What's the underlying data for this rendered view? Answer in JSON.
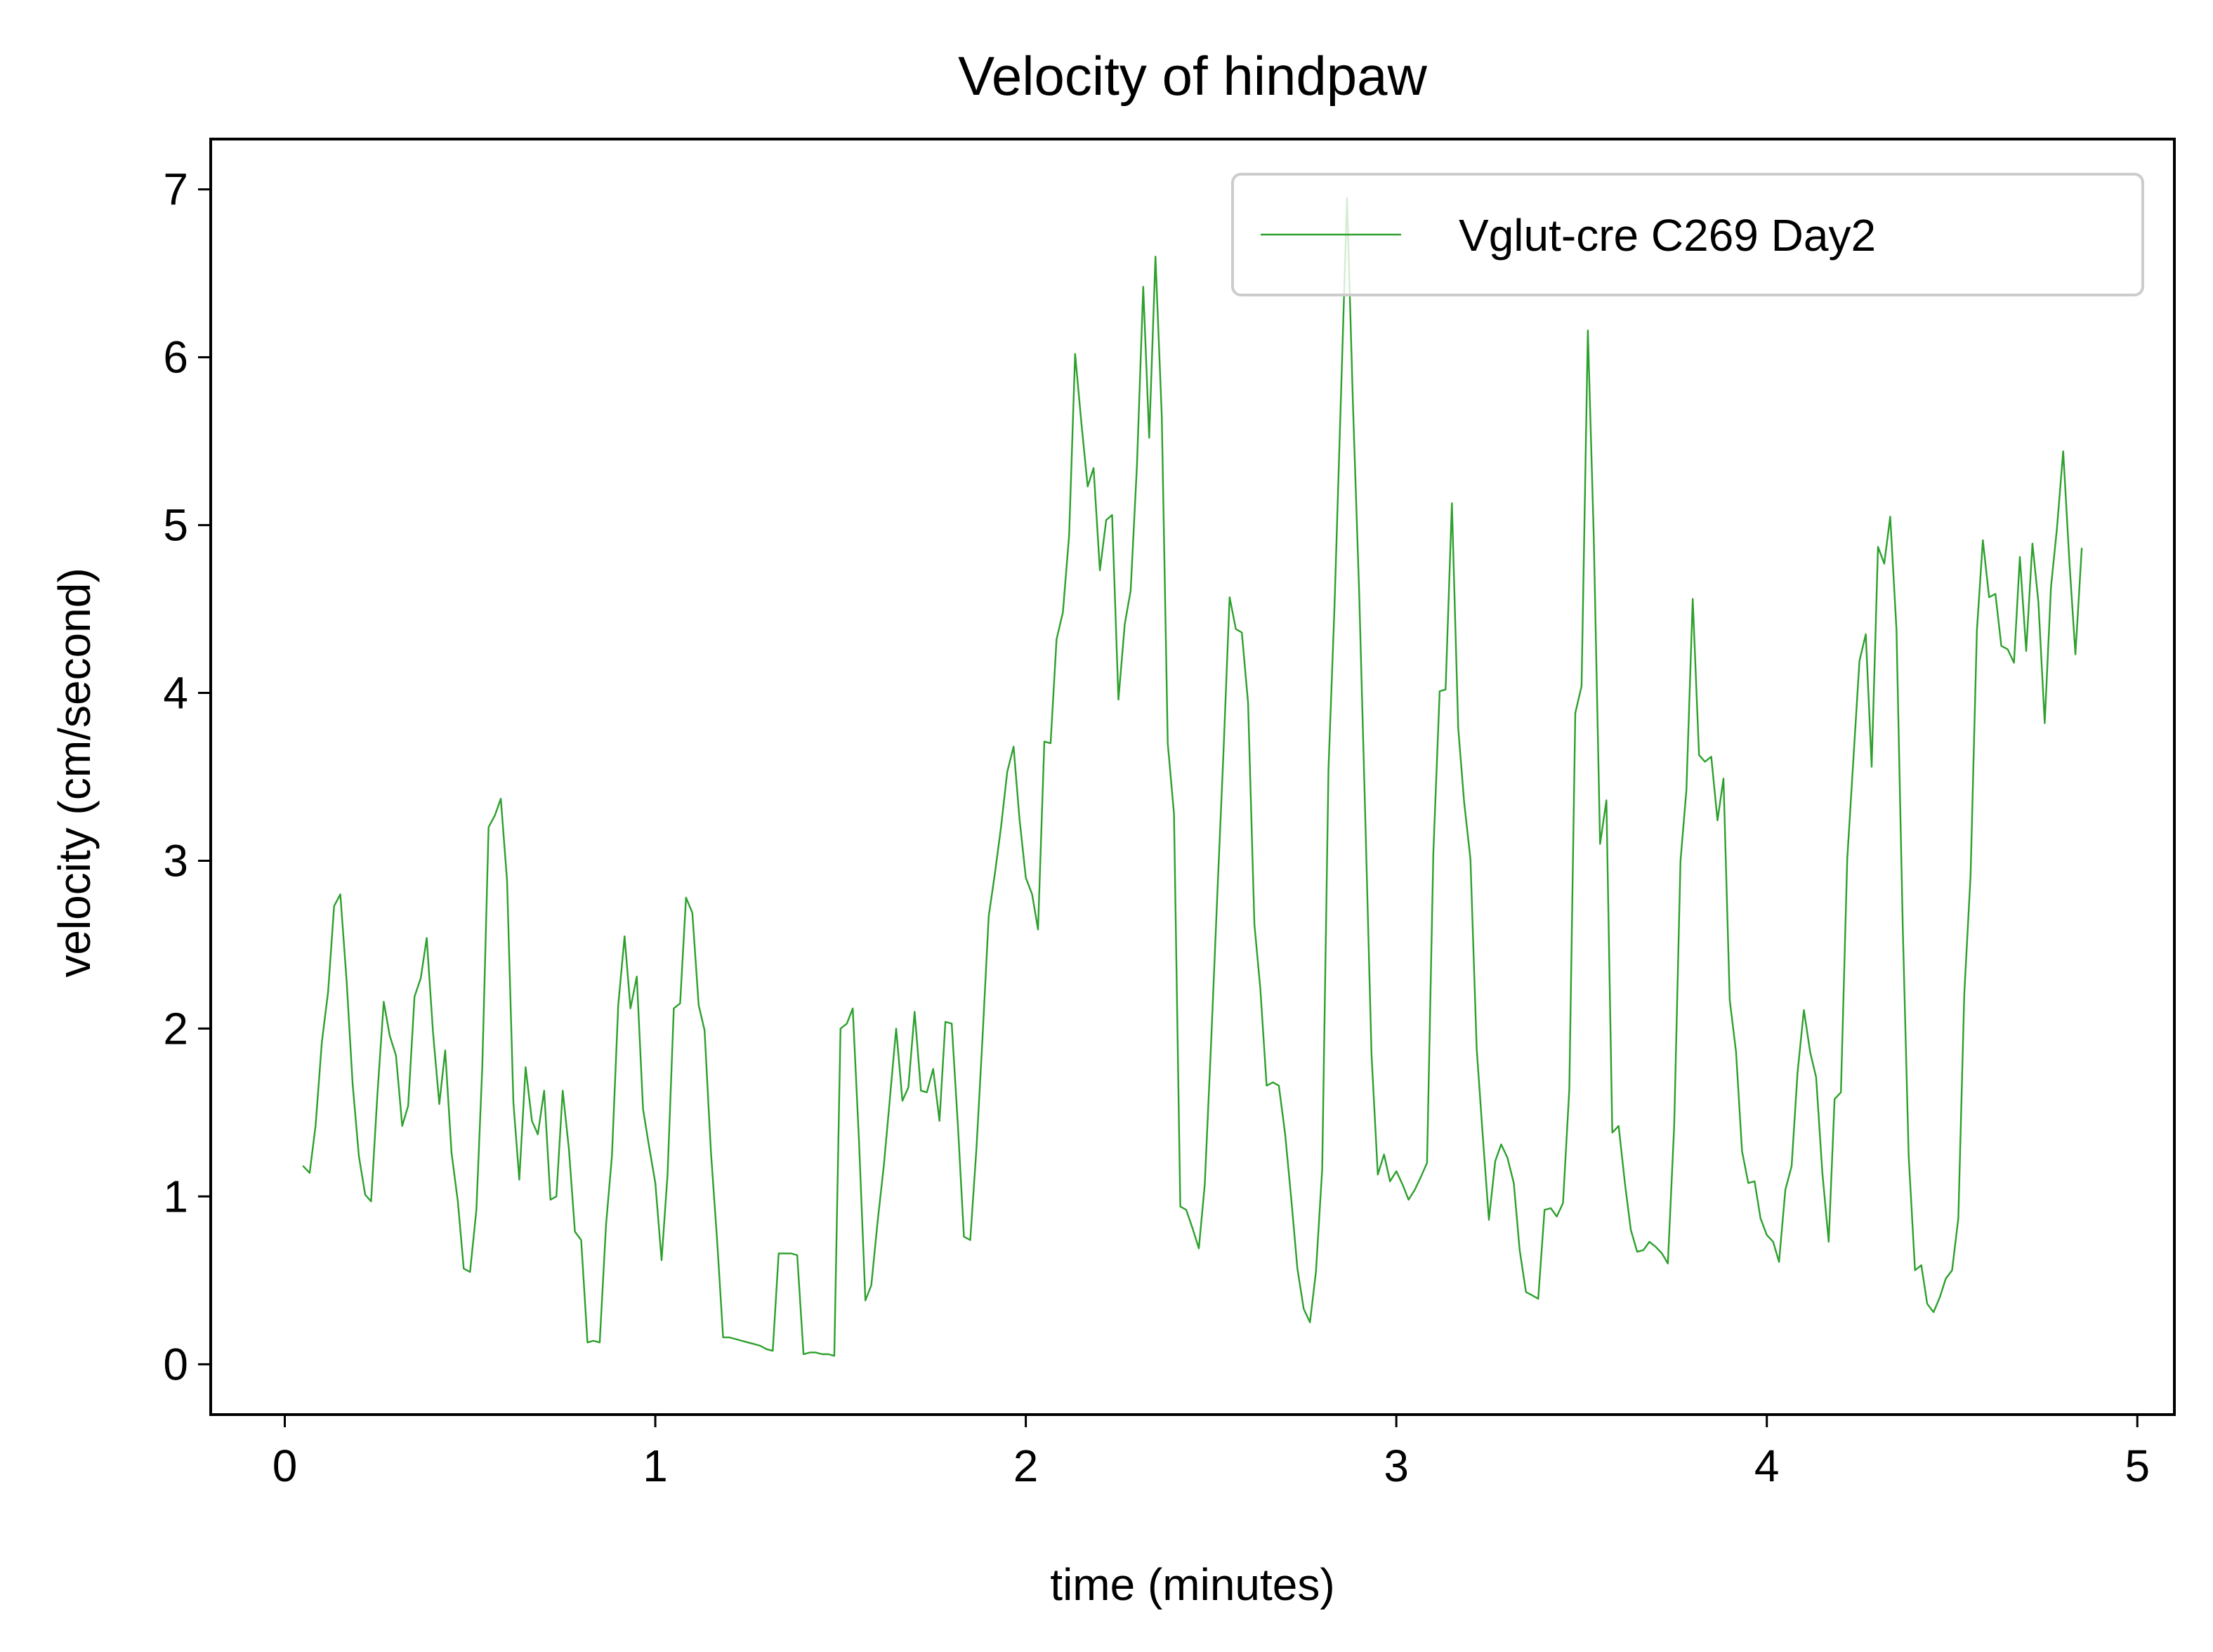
{
  "chart_data": {
    "type": "line",
    "title": "Velocity of hindpaw",
    "xlabel": "time (minutes)",
    "ylabel": "velocity (cm/second)",
    "xlim": [
      -0.2,
      5.1
    ],
    "ylim": [
      -0.3,
      7.3
    ],
    "xticks": [
      0,
      1,
      2,
      3,
      4,
      5
    ],
    "xtick_labels": [
      "0",
      "1",
      "2",
      "3",
      "4",
      "5"
    ],
    "yticks": [
      0,
      1,
      2,
      3,
      4,
      5,
      6,
      7
    ],
    "ytick_labels": [
      "0",
      "1",
      "2",
      "3",
      "4",
      "5",
      "6",
      "7"
    ],
    "grid": false,
    "legend": "top-right",
    "series": [
      {
        "name": "Vglut-cre C269 Day2",
        "color": "#2ca02c",
        "x": [
          0.05,
          0.067,
          0.083,
          0.1,
          0.117,
          0.133,
          0.15,
          0.167,
          0.183,
          0.2,
          0.217,
          0.233,
          0.25,
          0.267,
          0.283,
          0.3,
          0.317,
          0.333,
          0.35,
          0.367,
          0.383,
          0.4,
          0.417,
          0.433,
          0.45,
          0.467,
          0.483,
          0.5,
          0.517,
          0.533,
          0.55,
          0.567,
          0.583,
          0.6,
          0.617,
          0.633,
          0.65,
          0.667,
          0.683,
          0.7,
          0.717,
          0.733,
          0.75,
          0.767,
          0.783,
          0.8,
          0.817,
          0.833,
          0.85,
          0.867,
          0.883,
          0.9,
          0.917,
          0.933,
          0.95,
          0.967,
          0.983,
          1.0,
          1.017,
          1.033,
          1.05,
          1.067,
          1.083,
          1.1,
          1.117,
          1.133,
          1.15,
          1.167,
          1.183,
          1.2,
          1.217,
          1.233,
          1.25,
          1.267,
          1.283,
          1.3,
          1.317,
          1.333,
          1.35,
          1.367,
          1.383,
          1.4,
          1.417,
          1.433,
          1.45,
          1.467,
          1.483,
          1.5,
          1.517,
          1.533,
          1.55,
          1.567,
          1.583,
          1.6,
          1.617,
          1.633,
          1.65,
          1.667,
          1.683,
          1.7,
          1.717,
          1.733,
          1.75,
          1.767,
          1.783,
          1.8,
          1.817,
          1.833,
          1.85,
          1.867,
          1.883,
          1.9,
          1.917,
          1.933,
          1.95,
          1.967,
          1.983,
          2.0,
          2.017,
          2.033,
          2.05,
          2.067,
          2.083,
          2.1,
          2.117,
          2.133,
          2.15,
          2.167,
          2.183,
          2.2,
          2.217,
          2.233,
          2.25,
          2.267,
          2.283,
          2.3,
          2.317,
          2.333,
          2.35,
          2.367,
          2.383,
          2.4,
          2.417,
          2.433,
          2.45,
          2.467,
          2.483,
          2.5,
          2.517,
          2.533,
          2.55,
          2.567,
          2.583,
          2.6,
          2.617,
          2.633,
          2.65,
          2.667,
          2.683,
          2.7,
          2.717,
          2.733,
          2.75,
          2.767,
          2.783,
          2.8,
          2.817,
          2.833,
          2.85,
          2.867,
          2.883,
          2.9,
          2.917,
          2.933,
          2.95,
          2.967,
          2.983,
          3.0,
          3.017,
          3.033,
          3.05,
          3.067,
          3.083,
          3.1,
          3.117,
          3.133,
          3.15,
          3.167,
          3.183,
          3.2,
          3.217,
          3.233,
          3.25,
          3.267,
          3.283,
          3.3,
          3.317,
          3.333,
          3.35,
          3.367,
          3.383,
          3.4,
          3.417,
          3.433,
          3.45,
          3.467,
          3.483,
          3.5,
          3.517,
          3.533,
          3.55,
          3.567,
          3.583,
          3.6,
          3.617,
          3.633,
          3.65,
          3.667,
          3.683,
          3.7,
          3.717,
          3.733,
          3.75,
          3.767,
          3.783,
          3.8,
          3.817,
          3.833,
          3.85,
          3.867,
          3.883,
          3.9,
          3.917,
          3.933,
          3.95,
          3.967,
          3.983,
          4.0,
          4.017,
          4.033,
          4.05,
          4.067,
          4.083,
          4.1,
          4.117,
          4.133,
          4.15,
          4.167,
          4.183,
          4.2,
          4.217,
          4.233,
          4.25,
          4.267,
          4.283,
          4.3,
          4.317,
          4.333,
          4.35,
          4.367,
          4.383,
          4.4,
          4.417,
          4.433,
          4.45,
          4.467,
          4.483,
          4.5,
          4.517,
          4.533,
          4.55,
          4.567,
          4.583,
          4.6,
          4.617,
          4.633,
          4.65,
          4.667,
          4.683,
          4.7,
          4.717,
          4.733,
          4.75,
          4.767,
          4.783,
          4.8,
          4.817,
          4.833,
          4.85
        ],
        "y": [
          1.18,
          1.14,
          1.42,
          1.92,
          2.22,
          2.73,
          2.8,
          2.28,
          1.67,
          1.24,
          1.01,
          0.97,
          1.61,
          2.16,
          1.96,
          1.84,
          1.42,
          1.54,
          2.19,
          2.3,
          2.54,
          1.98,
          1.55,
          1.87,
          1.26,
          0.97,
          0.57,
          0.55,
          0.92,
          1.77,
          3.2,
          3.27,
          3.37,
          2.88,
          1.56,
          1.1,
          1.77,
          1.45,
          1.37,
          1.63,
          0.98,
          1.0,
          1.63,
          1.28,
          0.79,
          0.74,
          0.13,
          0.14,
          0.13,
          0.83,
          1.24,
          2.14,
          2.55,
          2.12,
          2.31,
          1.52,
          1.3,
          1.08,
          0.62,
          1.13,
          2.12,
          2.15,
          2.78,
          2.69,
          2.14,
          1.99,
          1.27,
          0.73,
          0.16,
          0.16,
          0.15,
          0.14,
          0.13,
          0.12,
          0.11,
          0.09,
          0.08,
          0.66,
          0.66,
          0.66,
          0.65,
          0.06,
          0.07,
          0.07,
          0.06,
          0.06,
          0.05,
          2.0,
          2.03,
          2.12,
          1.32,
          0.38,
          0.47,
          0.85,
          1.19,
          1.58,
          2.0,
          1.57,
          1.65,
          2.1,
          1.63,
          1.62,
          1.76,
          1.45,
          2.04,
          2.03,
          1.41,
          0.76,
          0.74,
          1.29,
          1.94,
          2.67,
          2.93,
          3.2,
          3.53,
          3.68,
          3.25,
          2.9,
          2.8,
          2.59,
          3.71,
          3.7,
          4.32,
          4.48,
          4.94,
          6.02,
          5.61,
          5.23,
          5.34,
          4.73,
          5.03,
          5.06,
          3.96,
          4.41,
          4.61,
          5.36,
          6.42,
          5.52,
          6.6,
          5.65,
          3.7,
          3.28,
          0.94,
          0.92,
          0.81,
          0.69,
          1.07,
          1.91,
          2.8,
          3.62,
          4.57,
          4.38,
          4.36,
          3.94,
          2.62,
          2.24,
          1.66,
          1.68,
          1.66,
          1.37,
          0.97,
          0.57,
          0.33,
          0.25,
          0.55,
          1.16,
          3.55,
          4.51,
          5.72,
          6.95,
          5.72,
          4.58,
          3.19,
          1.85,
          1.13,
          1.25,
          1.09,
          1.15,
          1.07,
          0.98,
          1.04,
          1.12,
          1.2,
          3.05,
          4.01,
          4.02,
          5.13,
          3.79,
          3.35,
          3.01,
          1.88,
          1.37,
          0.86,
          1.21,
          1.31,
          1.23,
          1.08,
          0.68,
          0.43,
          0.41,
          0.39,
          0.92,
          0.93,
          0.88,
          0.96,
          1.64,
          3.88,
          4.04,
          6.16,
          4.93,
          3.1,
          3.36,
          1.38,
          1.42,
          1.08,
          0.8,
          0.67,
          0.68,
          0.73,
          0.7,
          0.66,
          0.6,
          1.42,
          3.0,
          3.42,
          4.56,
          3.63,
          3.59,
          3.62,
          3.24,
          3.49,
          2.17,
          1.86,
          1.27,
          1.08,
          1.09,
          0.87,
          0.77,
          0.73,
          0.61,
          1.04,
          1.18,
          1.74,
          2.11,
          1.86,
          1.71,
          1.14,
          0.73,
          1.58,
          1.62,
          3.01,
          3.58,
          4.19,
          4.35,
          3.56,
          4.87,
          4.77,
          5.05,
          4.38,
          2.6,
          1.24,
          0.56,
          0.59,
          0.36,
          0.31,
          0.4,
          0.51,
          0.56,
          0.87,
          2.21,
          2.91,
          4.37,
          4.91,
          4.57,
          4.59,
          4.28,
          4.26,
          4.18,
          4.81,
          4.25,
          4.89,
          4.54,
          3.82,
          4.63,
          4.98,
          5.44,
          4.77,
          4.23,
          4.86
        ]
      }
    ]
  }
}
